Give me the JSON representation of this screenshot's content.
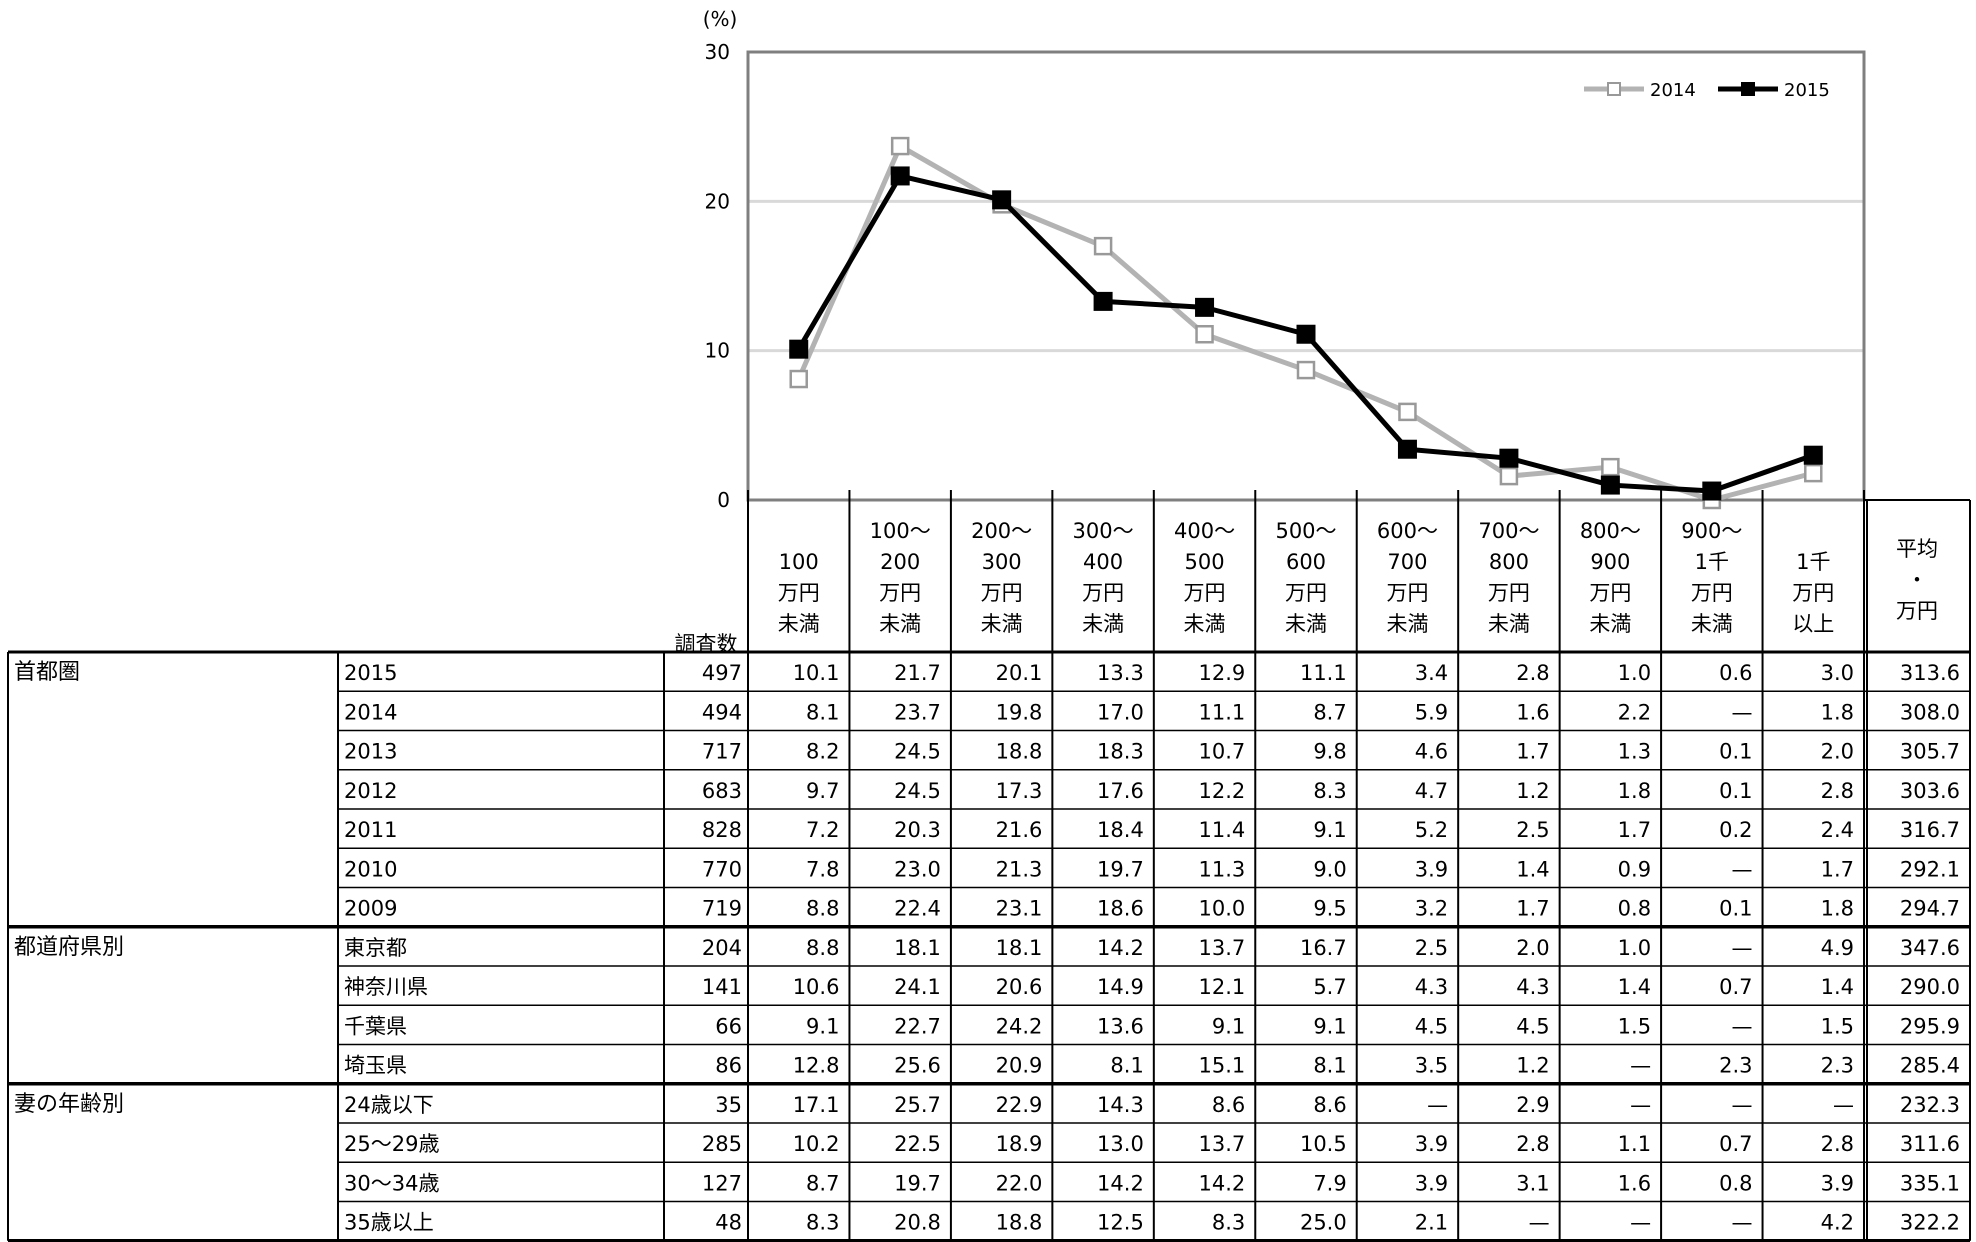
{
  "chart_data": {
    "type": "line",
    "y_unit": "(%)",
    "ylim": [
      0,
      30
    ],
    "y_ticks": [
      "0",
      "10",
      "20",
      "30"
    ],
    "categories": [
      "100\n万円\n未満",
      "100～\n200\n万円\n未満",
      "200～\n300\n万円\n未満",
      "300～\n400\n万円\n未満",
      "400～\n500\n万円\n未満",
      "500～\n600\n万円\n未満",
      "600～\n700\n万円\n未満",
      "700～\n800\n万円\n未満",
      "800～\n900\n万円\n未満",
      "900～\n1千\n万円\n未満",
      "1千\n万円\n以上"
    ],
    "series": [
      {
        "name": "2014",
        "values": [
          8.1,
          23.7,
          19.8,
          17.0,
          11.1,
          8.7,
          5.9,
          1.6,
          2.2,
          0,
          1.8
        ],
        "color": "#b3b3b3",
        "marker": "hollow-square"
      },
      {
        "name": "2015",
        "values": [
          10.1,
          21.7,
          20.1,
          13.3,
          12.9,
          11.1,
          3.4,
          2.8,
          1.0,
          0.6,
          3.0
        ],
        "color": "#000000",
        "marker": "filled-square"
      }
    ],
    "legend_position": "top-right",
    "grid": true
  },
  "table": {
    "count_header": "調査数",
    "avg_header": "平均\n・\n万円",
    "groups": [
      {
        "label": "首都圏",
        "rows": [
          {
            "label": "2015",
            "cells": [
              "497",
              "10.1",
              "21.7",
              "20.1",
              "13.3",
              "12.9",
              "11.1",
              "3.4",
              "2.8",
              "1.0",
              "0.6",
              "3.0",
              "313.6"
            ]
          },
          {
            "label": "2014",
            "cells": [
              "494",
              "8.1",
              "23.7",
              "19.8",
              "17.0",
              "11.1",
              "8.7",
              "5.9",
              "1.6",
              "2.2",
              "—",
              "1.8",
              "308.0"
            ]
          },
          {
            "label": "2013",
            "cells": [
              "717",
              "8.2",
              "24.5",
              "18.8",
              "18.3",
              "10.7",
              "9.8",
              "4.6",
              "1.7",
              "1.3",
              "0.1",
              "2.0",
              "305.7"
            ]
          },
          {
            "label": "2012",
            "cells": [
              "683",
              "9.7",
              "24.5",
              "17.3",
              "17.6",
              "12.2",
              "8.3",
              "4.7",
              "1.2",
              "1.8",
              "0.1",
              "2.8",
              "303.6"
            ]
          },
          {
            "label": "2011",
            "cells": [
              "828",
              "7.2",
              "20.3",
              "21.6",
              "18.4",
              "11.4",
              "9.1",
              "5.2",
              "2.5",
              "1.7",
              "0.2",
              "2.4",
              "316.7"
            ]
          },
          {
            "label": "2010",
            "cells": [
              "770",
              "7.8",
              "23.0",
              "21.3",
              "19.7",
              "11.3",
              "9.0",
              "3.9",
              "1.4",
              "0.9",
              "—",
              "1.7",
              "292.1"
            ]
          },
          {
            "label": "2009",
            "cells": [
              "719",
              "8.8",
              "22.4",
              "23.1",
              "18.6",
              "10.0",
              "9.5",
              "3.2",
              "1.7",
              "0.8",
              "0.1",
              "1.8",
              "294.7"
            ]
          }
        ]
      },
      {
        "label": "都道府県別",
        "rows": [
          {
            "label": "東京都",
            "cells": [
              "204",
              "8.8",
              "18.1",
              "18.1",
              "14.2",
              "13.7",
              "16.7",
              "2.5",
              "2.0",
              "1.0",
              "—",
              "4.9",
              "347.6"
            ]
          },
          {
            "label": "神奈川県",
            "cells": [
              "141",
              "10.6",
              "24.1",
              "20.6",
              "14.9",
              "12.1",
              "5.7",
              "4.3",
              "4.3",
              "1.4",
              "0.7",
              "1.4",
              "290.0"
            ]
          },
          {
            "label": "千葉県",
            "cells": [
              "66",
              "9.1",
              "22.7",
              "24.2",
              "13.6",
              "9.1",
              "9.1",
              "4.5",
              "4.5",
              "1.5",
              "—",
              "1.5",
              "295.9"
            ]
          },
          {
            "label": "埼玉県",
            "cells": [
              "86",
              "12.8",
              "25.6",
              "20.9",
              "8.1",
              "15.1",
              "8.1",
              "3.5",
              "1.2",
              "—",
              "2.3",
              "2.3",
              "285.4"
            ]
          }
        ]
      },
      {
        "label": "妻の年齢別",
        "rows": [
          {
            "label": "24歳以下",
            "cells": [
              "35",
              "17.1",
              "25.7",
              "22.9",
              "14.3",
              "8.6",
              "8.6",
              "—",
              "2.9",
              "—",
              "—",
              "—",
              "232.3"
            ]
          },
          {
            "label": "25～29歳",
            "cells": [
              "285",
              "10.2",
              "22.5",
              "18.9",
              "13.0",
              "13.7",
              "10.5",
              "3.9",
              "2.8",
              "1.1",
              "0.7",
              "2.8",
              "311.6"
            ]
          },
          {
            "label": "30～34歳",
            "cells": [
              "127",
              "8.7",
              "19.7",
              "22.0",
              "14.2",
              "14.2",
              "7.9",
              "3.9",
              "3.1",
              "1.6",
              "0.8",
              "3.9",
              "335.1"
            ]
          },
          {
            "label": "35歳以上",
            "cells": [
              "48",
              "8.3",
              "20.8",
              "18.8",
              "12.5",
              "8.3",
              "25.0",
              "2.1",
              "—",
              "—",
              "—",
              "4.2",
              "322.2"
            ]
          }
        ]
      }
    ]
  }
}
